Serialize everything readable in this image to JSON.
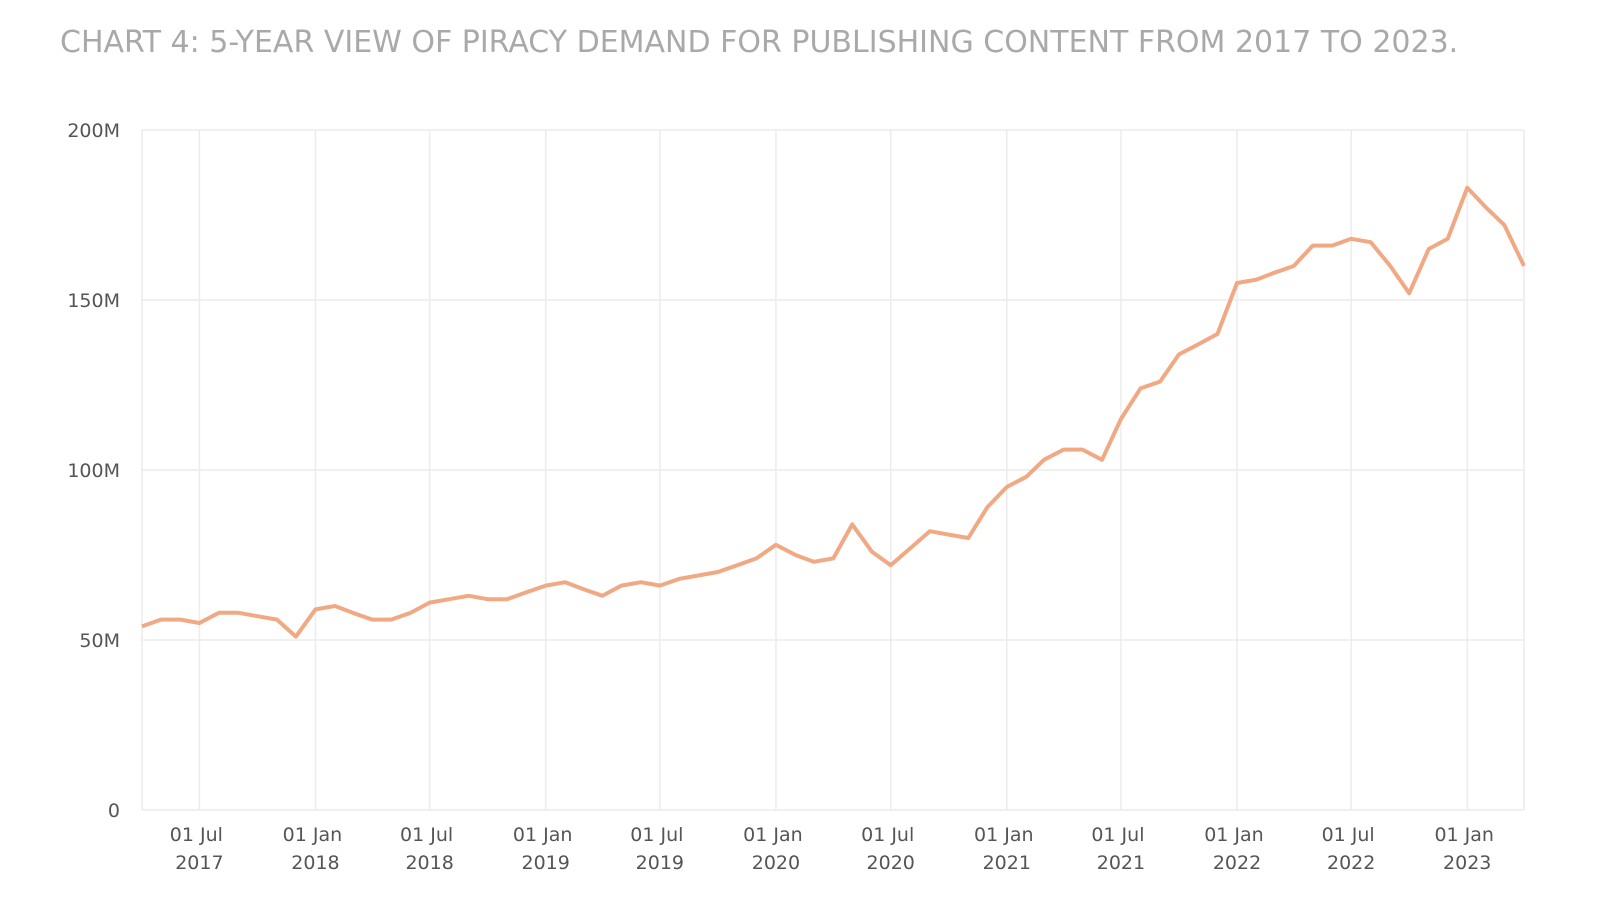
{
  "chart_data": {
    "type": "line",
    "title": "CHART 4: 5-YEAR VIEW OF PIRACY DEMAND FOR PUBLISHING CONTENT FROM 2017 TO 2023.",
    "x": [
      "2017-04-01",
      "2017-05-01",
      "2017-06-01",
      "2017-07-01",
      "2017-08-01",
      "2017-09-01",
      "2017-10-01",
      "2017-11-01",
      "2017-12-01",
      "2018-01-01",
      "2018-02-01",
      "2018-03-01",
      "2018-04-01",
      "2018-05-01",
      "2018-06-01",
      "2018-07-01",
      "2018-08-01",
      "2018-09-01",
      "2018-10-01",
      "2018-11-01",
      "2018-12-01",
      "2019-01-01",
      "2019-02-01",
      "2019-03-01",
      "2019-04-01",
      "2019-05-01",
      "2019-06-01",
      "2019-07-01",
      "2019-08-01",
      "2019-09-01",
      "2019-10-01",
      "2019-11-01",
      "2019-12-01",
      "2020-01-01",
      "2020-02-01",
      "2020-03-01",
      "2020-04-01",
      "2020-05-01",
      "2020-06-01",
      "2020-07-01",
      "2020-08-01",
      "2020-09-01",
      "2020-10-01",
      "2020-11-01",
      "2020-12-01",
      "2021-01-01",
      "2021-02-01",
      "2021-03-01",
      "2021-04-01",
      "2021-05-01",
      "2021-06-01",
      "2021-07-01",
      "2021-08-01",
      "2021-09-01",
      "2021-10-01",
      "2021-11-01",
      "2021-12-01",
      "2022-01-01",
      "2022-02-01",
      "2022-03-01",
      "2022-04-01",
      "2022-05-01",
      "2022-06-01",
      "2022-07-01",
      "2022-08-01",
      "2022-09-01",
      "2022-10-01",
      "2022-11-01",
      "2022-12-01",
      "2023-01-01",
      "2023-02-01",
      "2023-03-01",
      "2023-04-01"
    ],
    "series": [
      {
        "color": "#f0a983",
        "values": [
          54000000,
          56000000,
          56000000,
          55000000,
          58000000,
          58000000,
          57000000,
          56000000,
          51000000,
          59000000,
          60000000,
          58000000,
          56000000,
          56000000,
          58000000,
          61000000,
          62000000,
          63000000,
          62000000,
          62000000,
          64000000,
          66000000,
          67000000,
          65000000,
          63000000,
          66000000,
          67000000,
          66000000,
          68000000,
          69000000,
          70000000,
          72000000,
          74000000,
          78000000,
          75000000,
          73000000,
          74000000,
          84000000,
          76000000,
          72000000,
          77000000,
          82000000,
          81000000,
          80000000,
          89000000,
          95000000,
          98000000,
          103000000,
          106000000,
          106000000,
          103000000,
          115000000,
          124000000,
          126000000,
          134000000,
          137000000,
          140000000,
          155000000,
          156000000,
          158000000,
          160000000,
          166000000,
          166000000,
          168000000,
          167000000,
          160000000,
          152000000,
          165000000,
          168000000,
          183000000,
          177000000,
          172000000,
          160000000
        ]
      }
    ],
    "xlim": [
      "2017-04-01",
      "2023-04-01"
    ],
    "xticks": [
      {
        "value": "2017-07-01",
        "label": "01 Jul 2017"
      },
      {
        "value": "2018-01-01",
        "label": "01 Jan 2018"
      },
      {
        "value": "2018-07-01",
        "label": "01 Jul 2018"
      },
      {
        "value": "2019-01-01",
        "label": "01 Jan 2019"
      },
      {
        "value": "2019-07-01",
        "label": "01 Jul 2019"
      },
      {
        "value": "2020-01-01",
        "label": "01 Jan 2020"
      },
      {
        "value": "2020-07-01",
        "label": "01 Jul 2020"
      },
      {
        "value": "2021-01-01",
        "label": "01 Jan 2021"
      },
      {
        "value": "2021-07-01",
        "label": "01 Jul 2021"
      },
      {
        "value": "2022-01-01",
        "label": "01 Jan 2022"
      },
      {
        "value": "2022-07-01",
        "label": "01 Jul 2022"
      },
      {
        "value": "2023-01-01",
        "label": "01 Jan 2023"
      }
    ],
    "ylim": [
      0,
      200000000
    ],
    "yticks": [
      0,
      {
        "value": 50000000,
        "label": "50M"
      },
      {
        "value": 100000000,
        "label": "100M"
      },
      {
        "value": 150000000,
        "label": "150M"
      },
      {
        "value": 200000000,
        "label": "200M"
      }
    ],
    "grid": true
  }
}
